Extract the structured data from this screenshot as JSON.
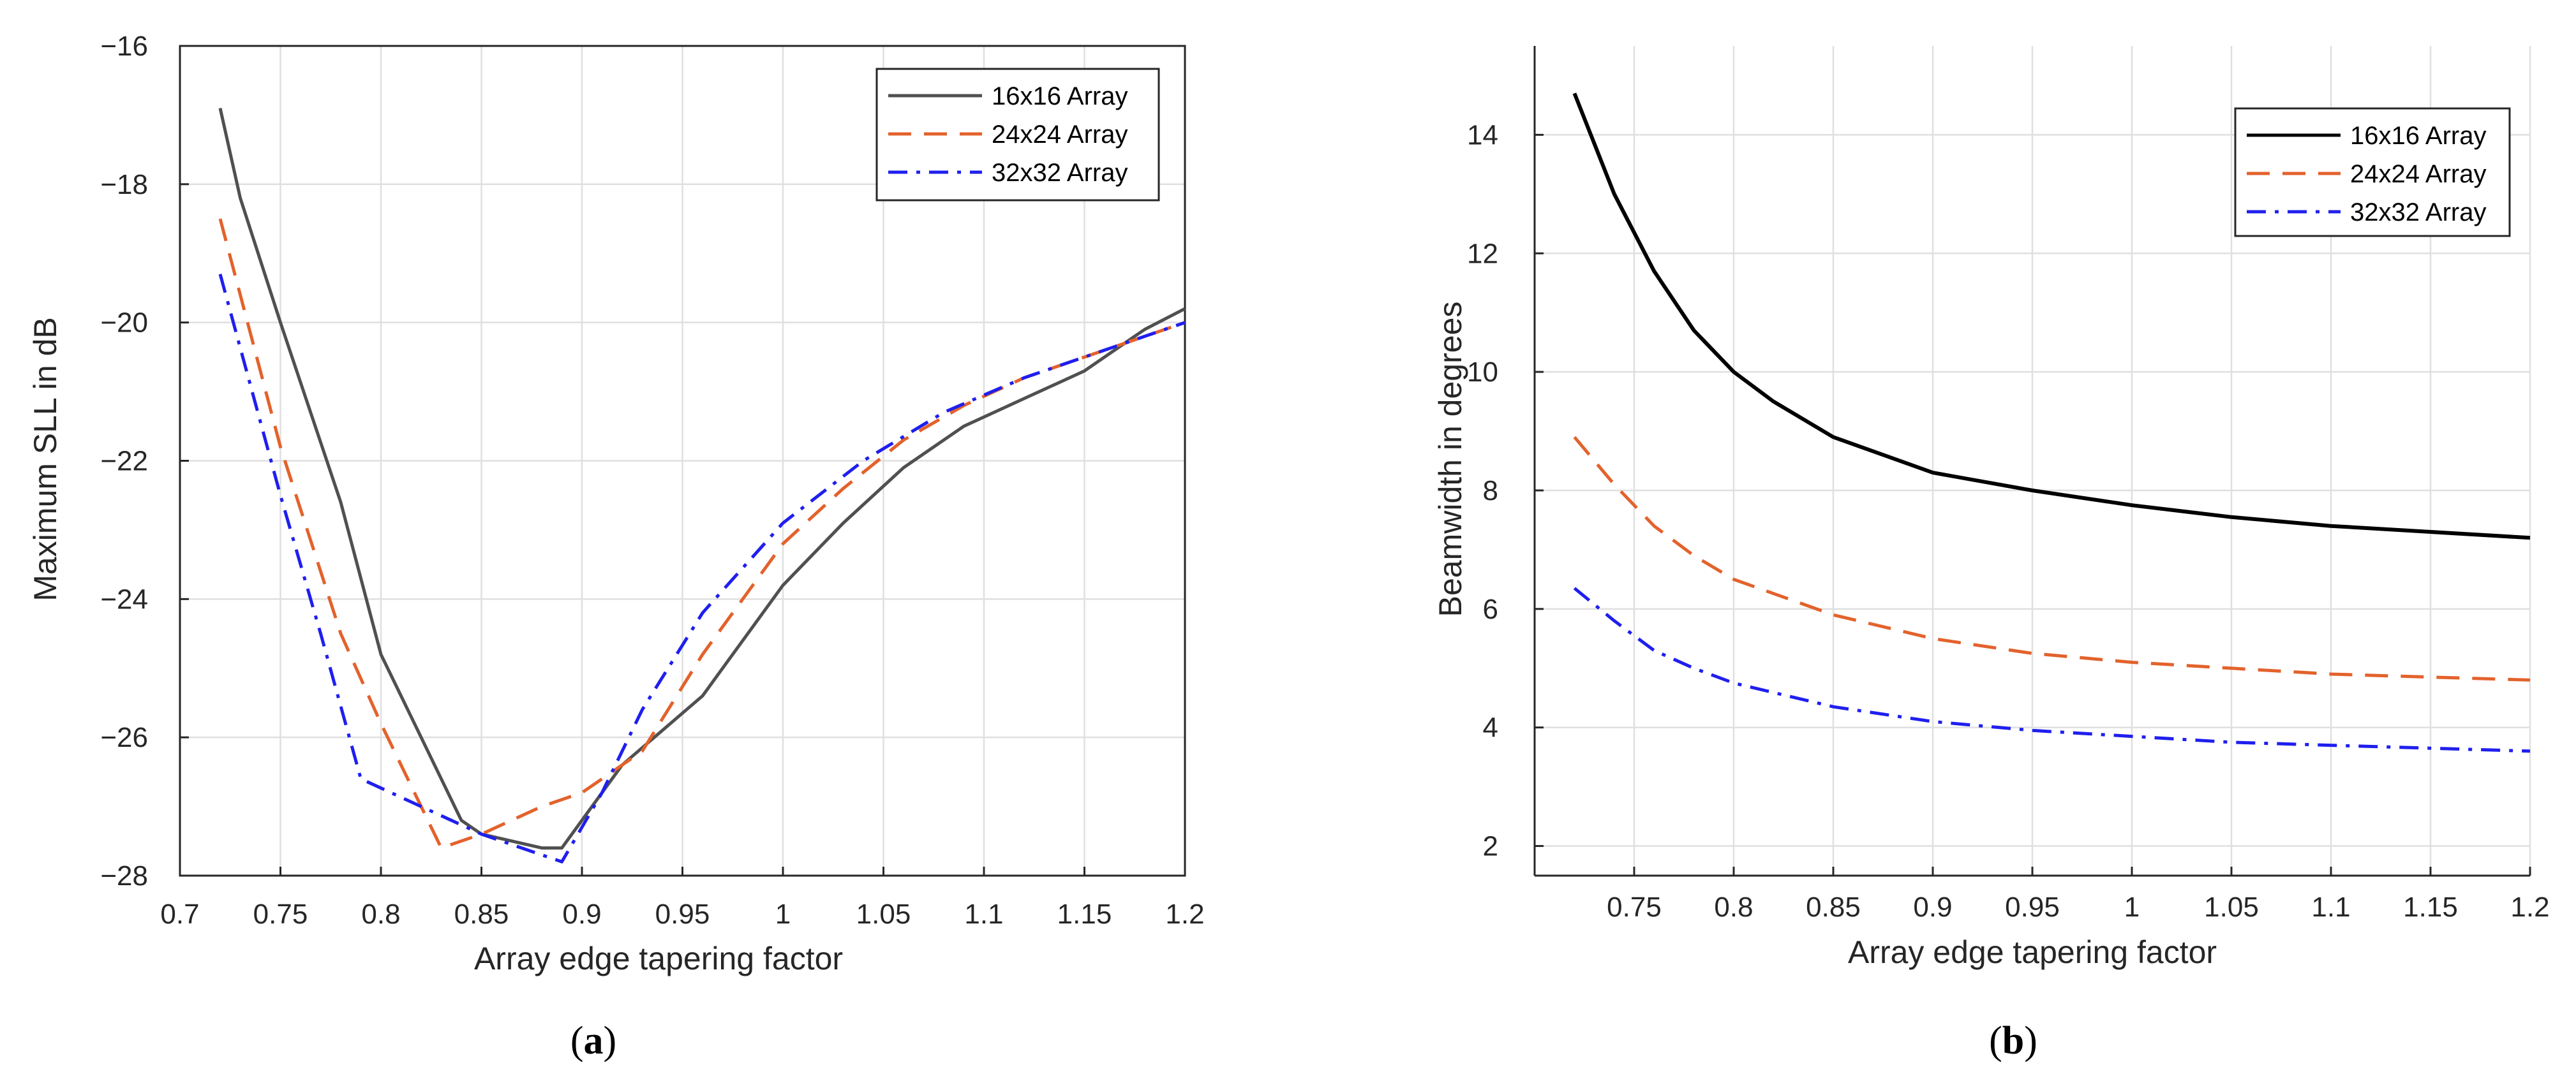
{
  "chart_data": [
    {
      "id": "a",
      "type": "line",
      "caption": "a",
      "title": "",
      "xlabel": "Array edge tapering factor",
      "ylabel": "Maximum SLL in dB",
      "xlim": [
        0.7,
        1.2
      ],
      "ylim": [
        -28,
        -16
      ],
      "xticks": [
        0.7,
        0.75,
        0.8,
        0.85,
        0.9,
        0.95,
        1,
        1.05,
        1.1,
        1.15,
        1.2
      ],
      "xtick_labels": [
        "0.7",
        "0.75",
        "0.8",
        "0.85",
        "0.9",
        "0.95",
        "1",
        "1.05",
        "1.1",
        "1.15",
        "1.2"
      ],
      "yticks": [
        -28,
        -26,
        -24,
        -22,
        -20,
        -18,
        -16
      ],
      "ytick_labels": [
        "−28",
        "−26",
        "−24",
        "−22",
        "−20",
        "−18",
        "−16"
      ],
      "grid": true,
      "legend_position": "top-right",
      "series": [
        {
          "name": "16x16 Array",
          "color": "#505050",
          "style": "solid",
          "x": [
            0.72,
            0.73,
            0.75,
            0.78,
            0.8,
            0.82,
            0.84,
            0.85,
            0.88,
            0.89,
            0.92,
            0.96,
            1.0,
            1.03,
            1.06,
            1.09,
            1.12,
            1.15,
            1.18,
            1.2
          ],
          "y": [
            -16.9,
            -18.2,
            -20.0,
            -22.6,
            -24.8,
            -26.0,
            -27.2,
            -27.4,
            -27.6,
            -27.6,
            -26.4,
            -25.4,
            -23.8,
            -22.9,
            -22.1,
            -21.5,
            -21.1,
            -20.7,
            -20.1,
            -19.8
          ]
        },
        {
          "name": "24x24 Array",
          "color": "#e3622c",
          "style": "dashed",
          "x": [
            0.72,
            0.75,
            0.78,
            0.8,
            0.83,
            0.85,
            0.88,
            0.9,
            0.93,
            0.96,
            1.0,
            1.03,
            1.06,
            1.09,
            1.12,
            1.15,
            1.18,
            1.2
          ],
          "y": [
            -18.5,
            -21.8,
            -24.5,
            -25.8,
            -27.6,
            -27.4,
            -27.0,
            -26.8,
            -26.2,
            -24.8,
            -23.2,
            -22.4,
            -21.7,
            -21.2,
            -20.8,
            -20.5,
            -20.2,
            -20.0
          ],
          "_pad": [
            0.93
          ]
        },
        {
          "name": "32x32 Array",
          "color": "#1f1fee",
          "style": "dashdot",
          "x": [
            0.72,
            0.75,
            0.77,
            0.79,
            0.82,
            0.85,
            0.87,
            0.89,
            0.91,
            0.93,
            0.96,
            1.0,
            1.04,
            1.08,
            1.12,
            1.16,
            1.2
          ],
          "y": [
            -19.3,
            -22.5,
            -24.5,
            -26.6,
            -27.0,
            -27.4,
            -27.6,
            -27.8,
            -26.8,
            -25.6,
            -24.2,
            -22.9,
            -22.0,
            -21.3,
            -20.8,
            -20.4,
            -20.0
          ]
        }
      ]
    },
    {
      "id": "b",
      "type": "line",
      "caption": "b",
      "title": "",
      "xlabel": "Array edge tapering factor",
      "ylabel": "Beamwidth in degrees",
      "xlim": [
        0.7,
        1.2
      ],
      "ylim": [
        1.5,
        15.5
      ],
      "xticks": [
        0.75,
        0.8,
        0.85,
        0.9,
        0.95,
        1,
        1.05,
        1.1,
        1.15,
        1.2
      ],
      "xtick_labels": [
        "0.75",
        "0.8",
        "0.85",
        "0.9",
        "0.95",
        "1",
        "1.05",
        "1.1",
        "1.15",
        "1.2"
      ],
      "yticks": [
        2,
        4,
        6,
        8,
        10,
        12,
        14
      ],
      "ytick_labels": [
        "2",
        "4",
        "6",
        "8",
        "10",
        "12",
        "14"
      ],
      "grid": true,
      "legend_position": "top-right",
      "series": [
        {
          "name": "16x16 Array",
          "color": "#000000",
          "style": "solid",
          "x": [
            0.72,
            0.74,
            0.76,
            0.78,
            0.8,
            0.82,
            0.85,
            0.9,
            0.95,
            1.0,
            1.05,
            1.1,
            1.15,
            1.2
          ],
          "y": [
            14.7,
            13.0,
            11.7,
            10.7,
            10.0,
            9.5,
            8.9,
            8.3,
            8.0,
            7.75,
            7.55,
            7.4,
            7.3,
            7.2
          ]
        },
        {
          "name": "24x24 Array",
          "color": "#e3622c",
          "style": "dashed",
          "x": [
            0.72,
            0.74,
            0.76,
            0.78,
            0.8,
            0.85,
            0.9,
            0.95,
            1.0,
            1.05,
            1.1,
            1.15,
            1.2
          ],
          "y": [
            8.9,
            8.1,
            7.4,
            6.9,
            6.5,
            5.9,
            5.5,
            5.25,
            5.1,
            5.0,
            4.9,
            4.85,
            4.8
          ]
        },
        {
          "name": "32x32 Array",
          "color": "#1f1fee",
          "style": "dashdot",
          "x": [
            0.72,
            0.74,
            0.76,
            0.78,
            0.8,
            0.85,
            0.9,
            0.95,
            1.0,
            1.05,
            1.1,
            1.15,
            1.2
          ],
          "y": [
            6.35,
            5.8,
            5.3,
            5.0,
            4.75,
            4.35,
            4.1,
            3.95,
            3.85,
            3.75,
            3.7,
            3.65,
            3.6
          ]
        }
      ]
    }
  ]
}
